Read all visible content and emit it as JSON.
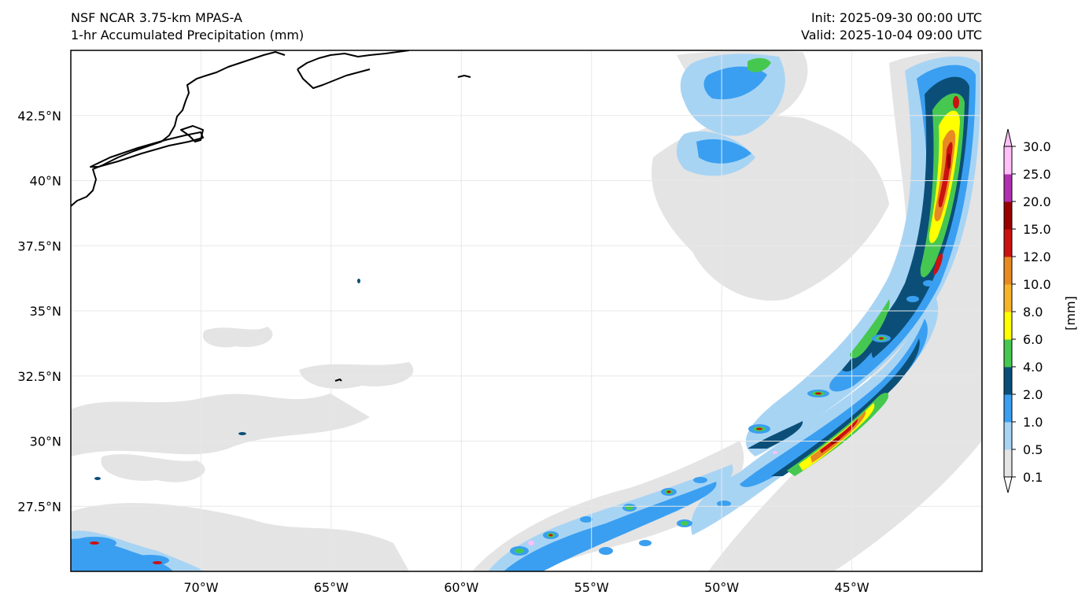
{
  "header": {
    "model": "NSF NCAR 3.75-km MPAS-A",
    "field": "1-hr Accumulated Precipitation (mm)",
    "init": "Init: 2025-09-30 00:00 UTC",
    "valid": "Valid: 2025-10-04 09:00 UTC"
  },
  "map": {
    "lon_range": [
      -75,
      -40
    ],
    "lat_range": [
      25,
      45
    ],
    "lat_ticks": [
      "42.5°N",
      "40°N",
      "37.5°N",
      "35°N",
      "32.5°N",
      "30°N",
      "27.5°N"
    ],
    "lat_tick_values": [
      42.5,
      40,
      37.5,
      35,
      32.5,
      30,
      27.5
    ],
    "lon_ticks": [
      "70°W",
      "65°W",
      "60°W",
      "55°W",
      "50°W",
      "45°W"
    ],
    "lon_tick_values": [
      -70,
      -65,
      -60,
      -55,
      -50,
      -45
    ],
    "gridlines": true
  },
  "colorbar": {
    "unit_label": "[mm]",
    "levels": [
      "0.1",
      "0.5",
      "1.0",
      "2.0",
      "4.0",
      "6.0",
      "8.0",
      "10.0",
      "12.0",
      "15.0",
      "20.0",
      "25.0",
      "30.0"
    ],
    "colors": [
      "#e4e4e4",
      "#a8d4f4",
      "#3a9ff0",
      "#0b4f78",
      "#46c850",
      "#ffff00",
      "#f6b42a",
      "#e88a22",
      "#cc1111",
      "#990000",
      "#b030b0",
      "#ffbff8"
    ]
  }
}
